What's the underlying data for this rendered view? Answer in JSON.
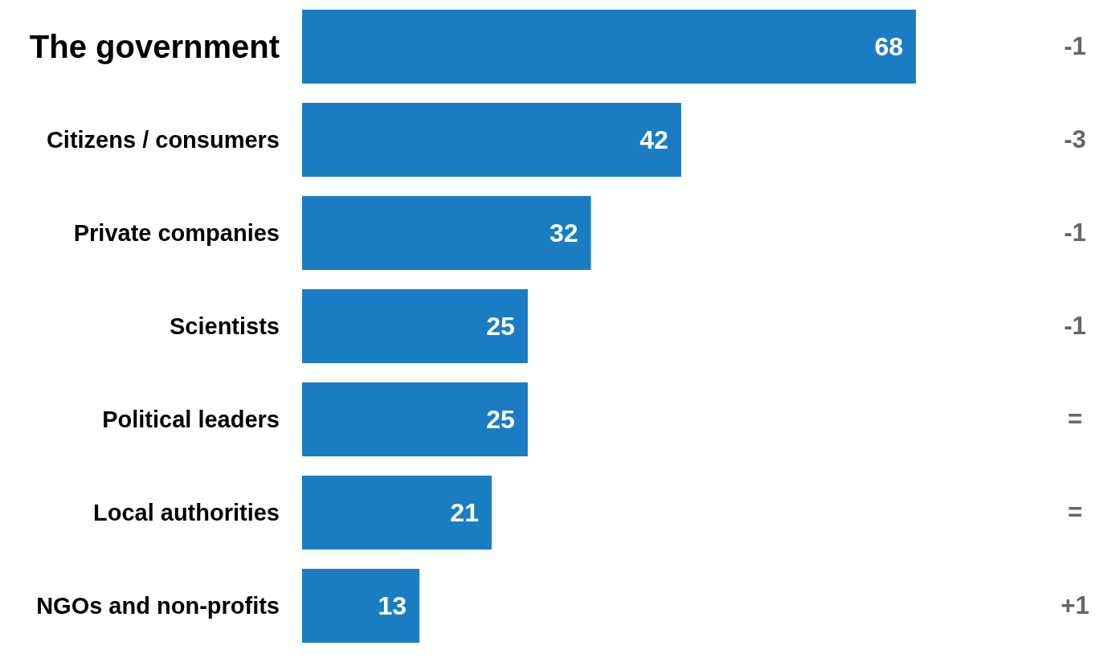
{
  "chart_data": {
    "type": "bar",
    "orientation": "horizontal",
    "categories": [
      "The government",
      "Citizens / consumers",
      "Private companies",
      "Scientists",
      "Political leaders",
      "Local authorities",
      "NGOs and non-profits"
    ],
    "values": [
      68,
      42,
      32,
      25,
      25,
      21,
      13
    ],
    "color": "#1a7dc4",
    "data_labels": true,
    "annotations": [
      "-1",
      "-3",
      "-1",
      "-1",
      "=",
      "=",
      "+1"
    ]
  }
}
